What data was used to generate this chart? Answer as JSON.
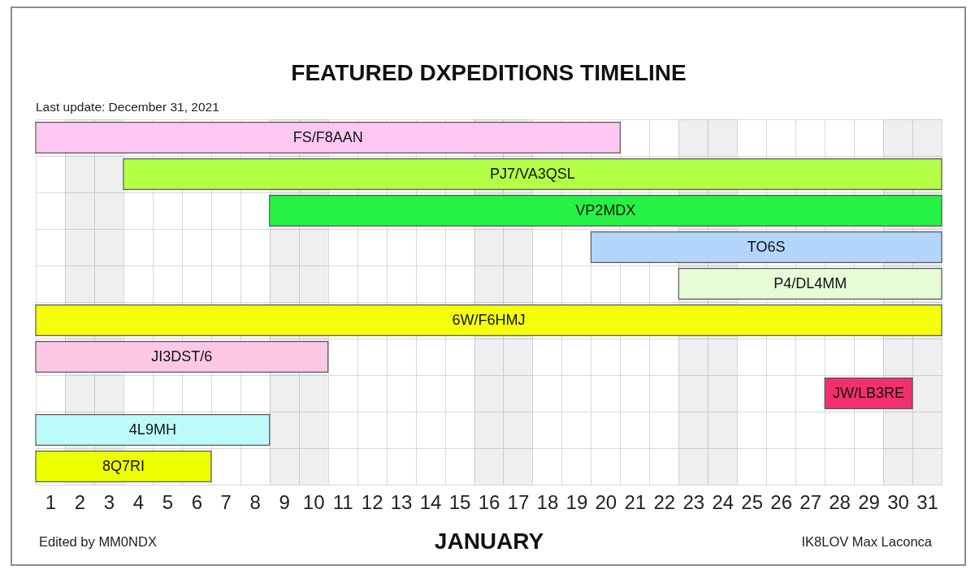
{
  "chart_data": {
    "type": "bar",
    "orientation": "horizontal",
    "title": "FEATURED DXPEDITIONS TIMELINE",
    "subtitle": "Last update: December 31, 2021",
    "xlabel": "JANUARY",
    "categories": [
      null,
      null,
      null,
      null,
      null,
      null,
      null,
      null,
      null,
      null
    ],
    "base": [
      0.5,
      3.5,
      8.5,
      19.5,
      22.5,
      0.5,
      0.5,
      27.5,
      0.5,
      0.5
    ],
    "values": [
      20,
      28,
      23,
      12,
      9,
      31,
      10,
      3,
      8,
      6
    ],
    "colors": [
      "#fcc8f2",
      "#b3ff47",
      "#26f244",
      "#b3d5fc",
      "#e5fcd7",
      "#f5ff0a",
      "#fcc8e3",
      "#f2306e",
      "#bdfafa",
      "#eeff00"
    ],
    "xlim": [
      0.5,
      31.5
    ],
    "xticks": [
      {
        "value": 0.5,
        "label": null
      },
      1,
      {
        "value": 1.5,
        "label": null
      },
      2,
      {
        "value": 2.5,
        "label": null
      },
      3,
      {
        "value": 3.5,
        "label": null
      },
      4,
      {
        "value": 4.5,
        "label": null
      },
      5,
      {
        "value": 5.5,
        "label": null
      },
      6,
      {
        "value": 6.5,
        "label": null
      },
      7,
      {
        "value": 7.5,
        "label": null
      },
      8,
      {
        "value": 8.5,
        "label": null
      },
      9,
      {
        "value": 9.5,
        "label": null
      },
      10,
      {
        "value": 10.5,
        "label": null
      },
      11,
      {
        "value": 11.5,
        "label": null
      },
      12,
      {
        "value": 12.5,
        "label": null
      },
      13,
      {
        "value": 13.5,
        "label": null
      },
      14,
      {
        "value": 14.5,
        "label": null
      },
      15,
      {
        "value": 15.5,
        "label": null
      },
      16,
      {
        "value": 16.5,
        "label": null
      },
      17,
      {
        "value": 17.5,
        "label": null
      },
      18,
      {
        "value": 18.5,
        "label": null
      },
      19,
      {
        "value": 19.5,
        "label": null
      },
      20,
      {
        "value": 20.5,
        "label": null
      },
      21,
      {
        "value": 21.5,
        "label": null
      },
      22,
      {
        "value": 22.5,
        "label": null
      },
      23,
      {
        "value": 23.5,
        "label": null
      },
      24,
      {
        "value": 24.5,
        "label": null
      },
      25,
      {
        "value": 25.5,
        "label": null
      },
      26,
      {
        "value": 26.5,
        "label": null
      },
      27,
      {
        "value": 27.5,
        "label": null
      },
      28,
      {
        "value": 28.5,
        "label": null
      },
      29,
      {
        "value": 29.5,
        "label": null
      },
      30,
      {
        "value": 30.5,
        "label": null
      },
      31,
      {
        "value": 31.5,
        "label": null
      }
    ],
    "bands": [
      {
        "axis": "x",
        "from": 1.5,
        "to": 3.5,
        "color": "#efefef"
      },
      {
        "axis": "x",
        "from": 8.5,
        "to": 10.5,
        "color": "#efefef"
      },
      {
        "axis": "x",
        "from": 15.5,
        "to": 17.5,
        "color": "#efefef"
      },
      {
        "axis": "x",
        "from": 22.5,
        "to": 24.5,
        "color": "#efefef"
      },
      {
        "axis": "x",
        "from": 29.5,
        "to": 31.5,
        "color": "#efefef"
      }
    ],
    "grid": true,
    "tick_labels": "x",
    "annotations": [
      "FS/F8AAN",
      "PJ7/VA3QSL",
      "VP2MDX",
      "TO6S",
      "P4/DL4MM",
      "6W/F6HMJ",
      "JI3DST/6",
      "JW/LB3RE",
      "4L9MH",
      "8Q7RI",
      "Edited by MM0NDX",
      "IK8LOV Max Laconca"
    ]
  }
}
